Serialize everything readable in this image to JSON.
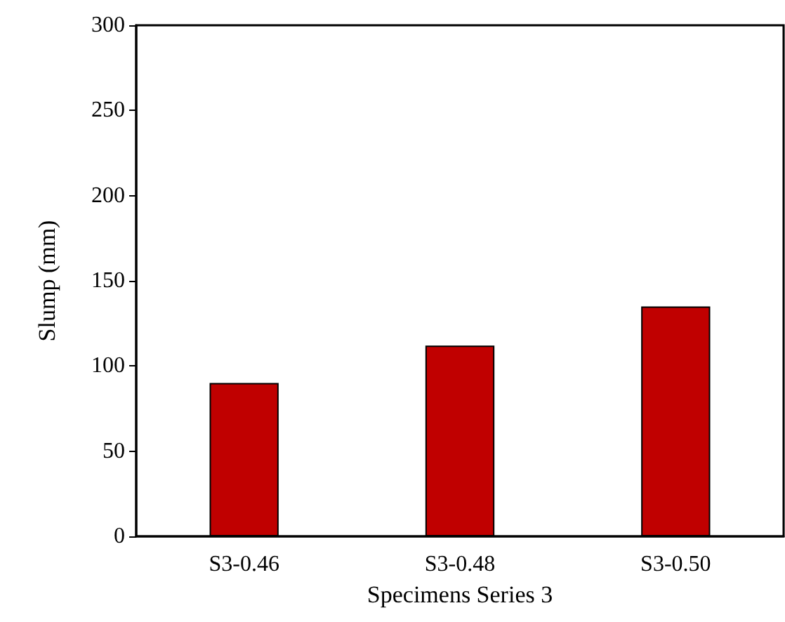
{
  "chart_data": {
    "type": "bar",
    "xlabel": "Specimens Series 3",
    "ylabel": "Slump (mm)",
    "categories": [
      "S3-0.46",
      "S3-0.48",
      "S3-0.50"
    ],
    "series": [
      {
        "color": "#c00000",
        "values": [
          90,
          112,
          135
        ]
      }
    ],
    "ylim": [
      0,
      300
    ],
    "yticks": [
      0,
      50,
      100,
      150,
      200,
      250,
      300
    ],
    "grid": false
  }
}
